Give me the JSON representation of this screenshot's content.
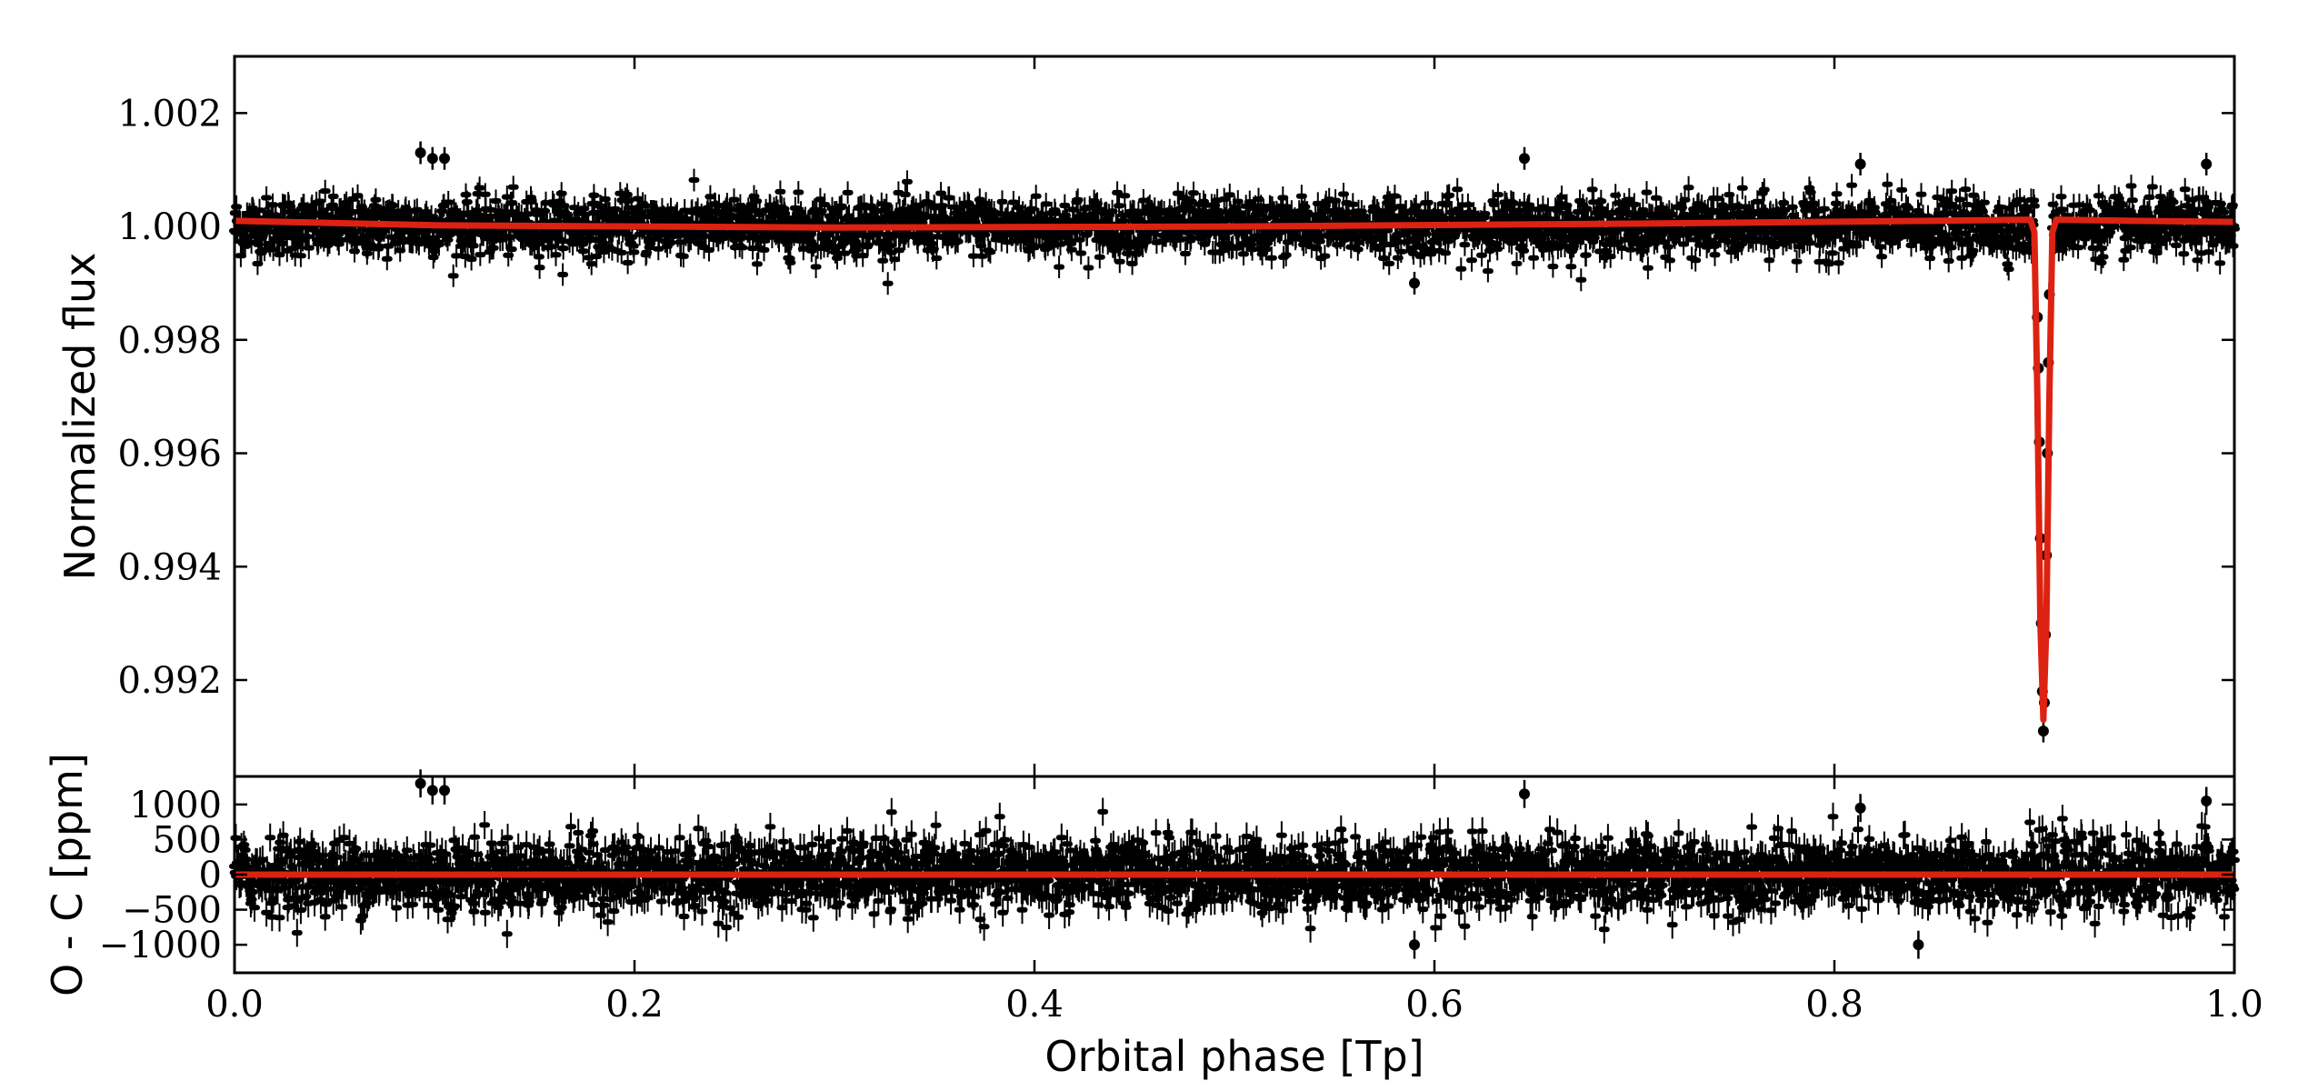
{
  "chart_data": [
    {
      "type": "scatter",
      "panel": "top",
      "ylabel": "Normalized flux",
      "xlim": [
        0.0,
        1.0
      ],
      "ylim": [
        0.9903,
        1.003
      ],
      "yticks": [
        0.992,
        0.994,
        0.996,
        0.998,
        1.0,
        1.002
      ],
      "ytick_labels": [
        "0.992",
        "0.994",
        "0.996",
        "0.998",
        "1.000",
        "1.002"
      ],
      "grid": false,
      "series": [
        {
          "kind": "points-with-errorbars",
          "color": "#000000",
          "description_values": {
            "baseline": 1.0,
            "scatter": 0.00025,
            "errorbar": 0.0002
          },
          "notable_points": [
            {
              "x": 0.093,
              "y": 1.0013
            },
            {
              "x": 0.099,
              "y": 1.0012
            },
            {
              "x": 0.105,
              "y": 1.0012
            },
            {
              "x": 0.59,
              "y": 0.999
            },
            {
              "x": 0.645,
              "y": 1.0012
            },
            {
              "x": 0.813,
              "y": 1.0011
            },
            {
              "x": 0.986,
              "y": 1.0011
            }
          ],
          "transit_points": [
            {
              "x": 0.9015,
              "y": 0.9984
            },
            {
              "x": 0.902,
              "y": 0.9975
            },
            {
              "x": 0.9025,
              "y": 0.9962
            },
            {
              "x": 0.903,
              "y": 0.9945
            },
            {
              "x": 0.9035,
              "y": 0.993
            },
            {
              "x": 0.904,
              "y": 0.9918
            },
            {
              "x": 0.9045,
              "y": 0.9911
            },
            {
              "x": 0.905,
              "y": 0.9916
            },
            {
              "x": 0.9055,
              "y": 0.9928
            },
            {
              "x": 0.906,
              "y": 0.9942
            },
            {
              "x": 0.9065,
              "y": 0.996
            },
            {
              "x": 0.907,
              "y": 0.9976
            },
            {
              "x": 0.9075,
              "y": 0.9988
            }
          ]
        },
        {
          "kind": "model-line",
          "color": "#dd2211",
          "points": [
            {
              "x": 0.0,
              "y": 1.0001
            },
            {
              "x": 0.1,
              "y": 1.00002
            },
            {
              "x": 0.3,
              "y": 0.99998
            },
            {
              "x": 0.5,
              "y": 1.0
            },
            {
              "x": 0.7,
              "y": 1.00005
            },
            {
              "x": 0.85,
              "y": 1.0001
            },
            {
              "x": 0.898,
              "y": 1.00012
            },
            {
              "x": 0.9,
              "y": 0.9999
            },
            {
              "x": 0.9015,
              "y": 0.997
            },
            {
              "x": 0.903,
              "y": 0.993
            },
            {
              "x": 0.9045,
              "y": 0.9913
            },
            {
              "x": 0.906,
              "y": 0.993
            },
            {
              "x": 0.9075,
              "y": 0.997
            },
            {
              "x": 0.909,
              "y": 0.9999
            },
            {
              "x": 0.911,
              "y": 1.00012
            },
            {
              "x": 0.95,
              "y": 1.0001
            },
            {
              "x": 1.0,
              "y": 1.00008
            }
          ]
        }
      ]
    },
    {
      "type": "scatter",
      "panel": "bottom",
      "ylabel": "O - C [ppm]",
      "xlabel": "Orbital phase [Tp]",
      "xlim": [
        0.0,
        1.0
      ],
      "ylim": [
        -1400,
        1400
      ],
      "yticks": [
        -1000,
        -500,
        0,
        500,
        1000
      ],
      "ytick_labels": [
        "−1000",
        "−500",
        "0",
        "500",
        "1000"
      ],
      "xticks": [
        0.0,
        0.2,
        0.4,
        0.6,
        0.8,
        1.0
      ],
      "xtick_labels": [
        "0.0",
        "0.2",
        "0.4",
        "0.6",
        "0.8",
        "1.0"
      ],
      "grid": false,
      "series": [
        {
          "kind": "points-with-errorbars",
          "color": "#000000",
          "description_values": {
            "baseline": 0,
            "scatter": 250,
            "errorbar": 200
          },
          "notable_points": [
            {
              "x": 0.093,
              "y": 1300
            },
            {
              "x": 0.099,
              "y": 1200
            },
            {
              "x": 0.105,
              "y": 1200
            },
            {
              "x": 0.59,
              "y": -1000
            },
            {
              "x": 0.645,
              "y": 1150
            },
            {
              "x": 0.813,
              "y": 950
            },
            {
              "x": 0.842,
              "y": -1000
            },
            {
              "x": 0.986,
              "y": 1050
            }
          ]
        },
        {
          "kind": "zero-line",
          "color": "#dd2211",
          "points": [
            {
              "x": 0.0,
              "y": 0
            },
            {
              "x": 1.0,
              "y": 0
            }
          ]
        }
      ]
    }
  ]
}
